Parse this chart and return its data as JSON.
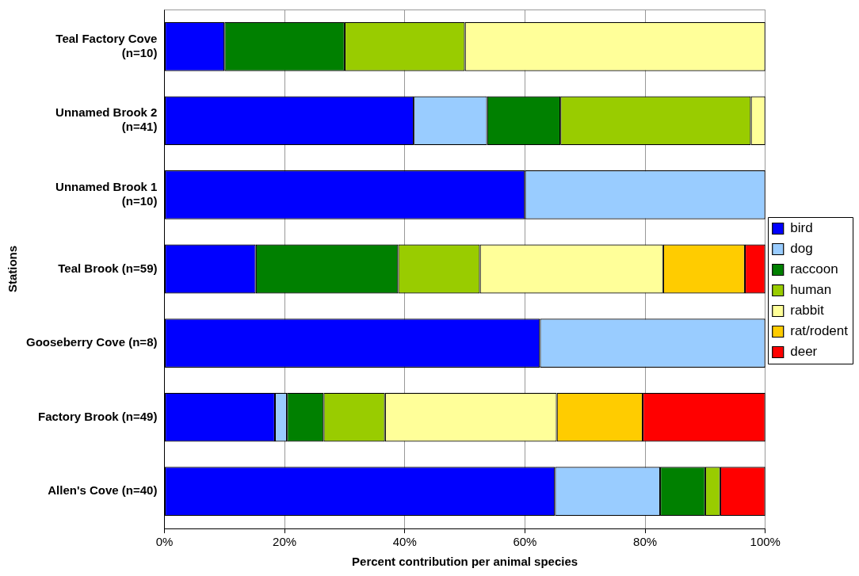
{
  "chart_data": {
    "type": "bar",
    "orientation": "horizontal",
    "stacked": true,
    "xlabel": "Percent contribution per animal species",
    "ylabel": "Stations",
    "categories": [
      "Teal Factory Cove (n=10)",
      "Unnamed Brook 2 (n=41)",
      "Unnamed Brook 1 (n=10)",
      "Teal Brook (n=59)",
      "Gooseberry Cove (n=8)",
      "Factory Brook (n=49)",
      "Allen's Cove (n=40)"
    ],
    "series": [
      {
        "name": "bird",
        "color": "#0000ff",
        "values": [
          10,
          41.5,
          60,
          15.2,
          62.5,
          18.4,
          65
        ]
      },
      {
        "name": "dog",
        "color": "#99ccff",
        "values": [
          0,
          12.2,
          40,
          0,
          37.5,
          2,
          17.5
        ]
      },
      {
        "name": "raccoon",
        "color": "#008000",
        "values": [
          20,
          12.2,
          0,
          23.7,
          0,
          6.1,
          7.5
        ]
      },
      {
        "name": "human",
        "color": "#99cc00",
        "values": [
          20,
          31.7,
          0,
          13.6,
          0,
          10.2,
          2.5
        ]
      },
      {
        "name": "rabbit",
        "color": "#ffff99",
        "values": [
          50,
          2.4,
          0,
          30.5,
          0,
          28.6,
          0
        ]
      },
      {
        "name": "rat/rodent",
        "color": "#ffcc00",
        "values": [
          0,
          0,
          0,
          13.6,
          0,
          14.3,
          0
        ]
      },
      {
        "name": "deer",
        "color": "#ff0000",
        "values": [
          0,
          0,
          0,
          3.4,
          0,
          20.4,
          7.5
        ]
      }
    ],
    "xlim": [
      0,
      100
    ],
    "xticks": [
      {
        "value": 0,
        "label": "0%"
      },
      {
        "value": 20,
        "label": "20%"
      },
      {
        "value": 40,
        "label": "40%"
      },
      {
        "value": 60,
        "label": "60%"
      },
      {
        "value": 80,
        "label": "80%"
      },
      {
        "value": 100,
        "label": "100%"
      }
    ],
    "grid": "x",
    "legend": "right"
  }
}
